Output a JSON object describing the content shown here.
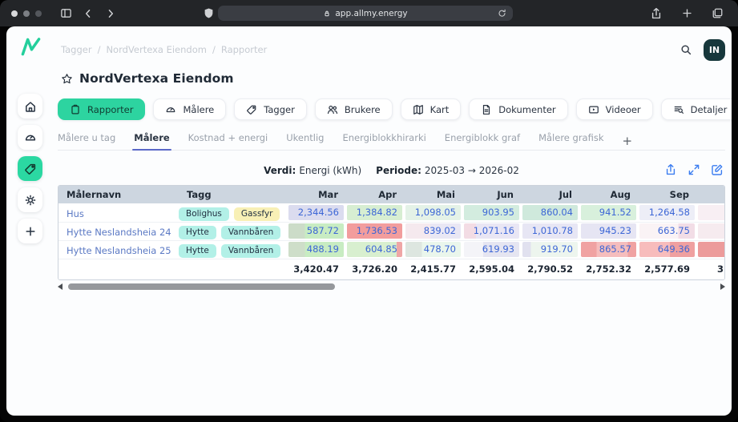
{
  "browser": {
    "url": "app.allmy.energy",
    "traffic_lights": [
      "#d8d9db",
      "#7c7f84",
      "#54575c"
    ]
  },
  "sidebar": {
    "items": [
      {
        "icon": "home",
        "active": false
      },
      {
        "icon": "gauge",
        "active": false
      },
      {
        "icon": "tag",
        "active": true
      },
      {
        "icon": "sun",
        "active": false
      },
      {
        "icon": "plus",
        "active": false
      }
    ]
  },
  "header": {
    "breadcrumb": [
      "Tagger",
      "NordVertexa Eiendom",
      "Rapporter"
    ],
    "breadcrumb_separator": "/",
    "avatar_initials": "IN"
  },
  "page": {
    "title": "NordVertexa Eiendom"
  },
  "nav_buttons": [
    {
      "label": "Rapporter",
      "icon": "clipboard",
      "active": true
    },
    {
      "label": "Målere",
      "icon": "gauge",
      "active": false
    },
    {
      "label": "Tagger",
      "icon": "tag",
      "active": false
    },
    {
      "label": "Brukere",
      "icon": "users",
      "active": false
    },
    {
      "label": "Kart",
      "icon": "map",
      "active": false
    },
    {
      "label": "Dokumenter",
      "icon": "document",
      "active": false
    },
    {
      "label": "Videoer",
      "icon": "video",
      "active": false
    },
    {
      "label": "Detaljer",
      "icon": "list-search",
      "active": false
    }
  ],
  "sub_tabs": [
    {
      "label": "Målere u tag",
      "active": false,
      "is_add": false
    },
    {
      "label": "Målere",
      "active": true,
      "is_add": false
    },
    {
      "label": "Kostnad + energi",
      "active": false,
      "is_add": false
    },
    {
      "label": "Ukentlig",
      "active": false,
      "is_add": false
    },
    {
      "label": "Energiblokkhirarki",
      "active": false,
      "is_add": false
    },
    {
      "label": "Energiblokk graf",
      "active": false,
      "is_add": false
    },
    {
      "label": "Målere grafisk",
      "active": false,
      "is_add": false
    },
    {
      "label": "+",
      "active": false,
      "is_add": true
    }
  ],
  "toolbar": {
    "verdi_label": "Verdi:",
    "verdi_value": "Energi (kWh)",
    "periode_label": "Periode:",
    "periode_value": "2025-03 → 2026-02",
    "actions": [
      "export",
      "expand",
      "edit"
    ]
  },
  "table": {
    "columns": [
      "Målernavn",
      "Tagg",
      "Mar",
      "Apr",
      "Mai",
      "Jun",
      "Jul",
      "Aug",
      "Sep"
    ],
    "rows": [
      {
        "name": "Hus",
        "tags": [
          {
            "label": "Bolighus",
            "bg": "#b2f0e7"
          },
          {
            "label": "Gassfyr",
            "bg": "#f8f0b6"
          }
        ],
        "values": [
          "2,344.56",
          "1,384.82",
          "1,098.05",
          "903.95",
          "860.04",
          "941.52",
          "1,264.58"
        ],
        "cell_bg": [
          "#dbdcef",
          "#d7eed2",
          "#e4f2e7",
          "#d3ecdf",
          "#cfe9dc",
          "#d8f0dc",
          "#edeef7"
        ],
        "next_bg": "#f8eff3"
      },
      {
        "name": "Hytte Neslandsheia 24",
        "tags": [
          {
            "label": "Hytte",
            "bg": "#b2f0e7"
          },
          {
            "label": "Vannbåren",
            "bg": "#b2f0e7"
          }
        ],
        "values": [
          "587.72",
          "1,736.53",
          "839.02",
          "1,071.16",
          "1,010.78",
          "945.23",
          "663.75"
        ],
        "cell_bg": [
          "linear-gradient(90deg,#ccdcc8 0%,#ccdcc8 30%,#c8ecc2 30%)",
          "#f29d9d",
          "linear-gradient(90deg,#f5e9ee 0%,#f5e9ee 45%,#e9e7f4 45%)",
          "linear-gradient(90deg,#f3dce4 0%,#f3dce4 22%,#e9e6f4 22%)",
          "#e7e6f4",
          "#e6e5f3",
          "linear-gradient(90deg,#faf3f5 0%,#faf3f5 70%,#f2dde6 70%)"
        ],
        "next_bg": "#f6ebef"
      },
      {
        "name": "Hytte Neslandsheia 25",
        "tags": [
          {
            "label": "Hytte",
            "bg": "#b2f0e7"
          },
          {
            "label": "Vannbåren",
            "bg": "#b2f0e7"
          }
        ],
        "values": [
          "488.19",
          "604.85",
          "478.70",
          "619.93",
          "919.70",
          "865.57",
          "649.36"
        ],
        "cell_bg": [
          "linear-gradient(90deg,#cedec9 0%,#cedec9 30%,#c8ecc2 30%)",
          "linear-gradient(90deg,#d8efcf 0%,#d8efcf 90%,#efa6a6 90%)",
          "linear-gradient(90deg,#dde6e0 0%,#dde6e0 30%,#eaf6ec 30%)",
          "linear-gradient(90deg,#f4f4f8 0%,#f4f4f8 35%,#e5e5f1 35%)",
          "linear-gradient(90deg,#e1e1ef 0%,#e1e1ef 15%,#edf5ee 15%)",
          "linear-gradient(90deg,#f0a2a2 0%,#f0a2a2 28%,#f5bdbd 28%,#f5bdbd 85%,#f0a2a2 85%)",
          "linear-gradient(90deg,#f7bcbc 0%,#f7bcbc 55%,#efa0a0 55%)"
        ],
        "next_bg": "#ec9b9b"
      }
    ],
    "totals": [
      "3,420.47",
      "3,726.20",
      "2,415.77",
      "2,595.04",
      "2,790.52",
      "2,752.32",
      "2,577.69"
    ],
    "totals_next_visible": "3"
  },
  "colors": {
    "accent_green": "#2dd4a0",
    "link_blue": "#5b79c4",
    "number_blue": "#3c66d6",
    "table_header_bg": "#cdd6e0",
    "tab_underline": "#5a68c8",
    "action_icon_blue": "#3b7df0",
    "avatar_bg": "#17383c"
  }
}
